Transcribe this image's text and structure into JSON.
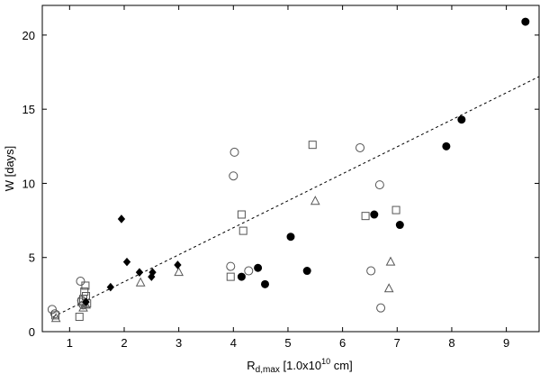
{
  "chart_data": {
    "type": "scatter",
    "xlabel_main": "R",
    "xlabel_sub": "d,max",
    "xlabel_rest": " [1.0x10",
    "xlabel_sup": "10",
    "xlabel_end": " cm]",
    "ylabel": "W [days]",
    "xlim": [
      0.5,
      9.6
    ],
    "ylim": [
      0,
      22
    ],
    "xticks": [
      1,
      2,
      3,
      4,
      5,
      6,
      7,
      8,
      9
    ],
    "yticks": [
      0,
      5,
      10,
      15,
      20
    ],
    "grid": false,
    "legend": "none",
    "fit_line": {
      "x": [
        0.7,
        9.6
      ],
      "y": [
        1.0,
        17.2
      ],
      "style": "dotted"
    },
    "series": [
      {
        "marker": "filled-circle",
        "points": [
          [
            4.15,
            3.7
          ],
          [
            4.45,
            4.3
          ],
          [
            4.58,
            3.2
          ],
          [
            5.05,
            6.4
          ],
          [
            5.35,
            4.1
          ],
          [
            6.58,
            7.9
          ],
          [
            7.05,
            7.2
          ],
          [
            7.9,
            12.5
          ],
          [
            8.18,
            14.3
          ],
          [
            9.35,
            20.9
          ]
        ]
      },
      {
        "marker": "open-circle",
        "points": [
          [
            0.68,
            1.5
          ],
          [
            0.73,
            1.2
          ],
          [
            1.2,
            3.4
          ],
          [
            1.22,
            2.1
          ],
          [
            1.25,
            1.8
          ],
          [
            3.95,
            4.4
          ],
          [
            4.0,
            10.5
          ],
          [
            4.02,
            12.1
          ],
          [
            4.28,
            4.1
          ],
          [
            6.32,
            12.4
          ],
          [
            6.52,
            4.1
          ],
          [
            6.68,
            9.9
          ],
          [
            6.7,
            1.6
          ]
        ]
      },
      {
        "marker": "open-square",
        "points": [
          [
            0.74,
            1.1
          ],
          [
            1.18,
            1.0
          ],
          [
            1.22,
            2.0
          ],
          [
            1.25,
            2.2
          ],
          [
            1.27,
            2.7
          ],
          [
            1.29,
            3.1
          ],
          [
            1.3,
            2.4
          ],
          [
            1.32,
            1.9
          ],
          [
            3.95,
            3.7
          ],
          [
            4.15,
            7.9
          ],
          [
            4.18,
            6.8
          ],
          [
            5.45,
            12.6
          ],
          [
            6.42,
            7.8
          ],
          [
            6.98,
            8.2
          ]
        ]
      },
      {
        "marker": "open-triangle",
        "points": [
          [
            0.75,
            0.9
          ],
          [
            1.25,
            1.6
          ],
          [
            1.3,
            1.8
          ],
          [
            2.3,
            3.3
          ],
          [
            3.0,
            4.0
          ],
          [
            5.5,
            8.8
          ],
          [
            6.85,
            2.9
          ],
          [
            6.88,
            4.7
          ]
        ]
      },
      {
        "marker": "filled-diamond",
        "points": [
          [
            1.3,
            2.0
          ],
          [
            1.75,
            3.0
          ],
          [
            1.95,
            7.6
          ],
          [
            2.05,
            4.7
          ],
          [
            2.28,
            4.0
          ],
          [
            2.5,
            3.7
          ],
          [
            2.52,
            4.0
          ],
          [
            2.98,
            4.5
          ]
        ]
      }
    ]
  }
}
